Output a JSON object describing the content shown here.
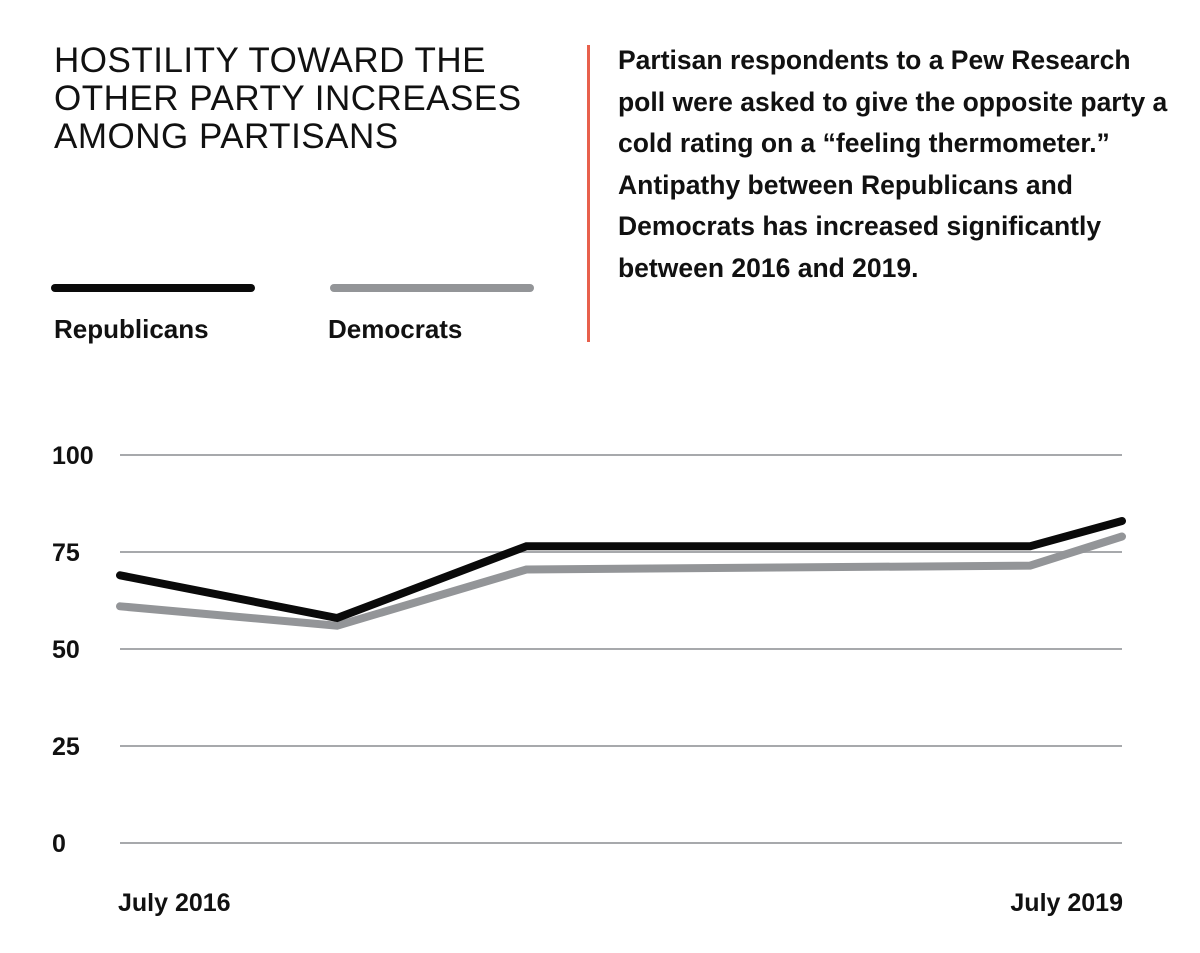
{
  "title": "HOSTILITY TOWARD THE OTHER PARTY INCREASES AMONG PARTISANS",
  "description": "Partisan respondents to a Pew Research poll were asked to give the opposite party a cold rating on a “feeling thermometer.” Antipathy between Republicans and Democrats has increased significantly between 2016 and 2019.",
  "legend": [
    {
      "name": "Republicans",
      "color": "#0a0a0a"
    },
    {
      "name": "Democrats",
      "color": "#939598"
    }
  ],
  "accent_color": "#e8604c",
  "gridline_color": "#a7a9ac",
  "chart_data": {
    "type": "line",
    "title": "HOSTILITY TOWARD THE OTHER PARTY INCREASES AMONG PARTISANS",
    "xlabel": "",
    "ylabel": "",
    "x_unit": "months since July 2016",
    "x": [
      0,
      7.8,
      14.6,
      32.7,
      36
    ],
    "xlim": [
      0,
      36
    ],
    "x_ticks": [
      {
        "value": 0,
        "label": "July 2016"
      },
      {
        "value": 36,
        "label": "July 2019"
      }
    ],
    "ylim": [
      0,
      100
    ],
    "y_ticks": [
      100,
      75,
      50,
      25,
      0
    ],
    "grid": true,
    "legend_position": "top-left",
    "series": [
      {
        "name": "Republicans",
        "color": "#0a0a0a",
        "values": [
          69,
          58,
          76.5,
          76.5,
          83
        ]
      },
      {
        "name": "Democrats",
        "color": "#939598",
        "values": [
          61,
          56,
          70.5,
          71.5,
          79
        ]
      }
    ]
  }
}
